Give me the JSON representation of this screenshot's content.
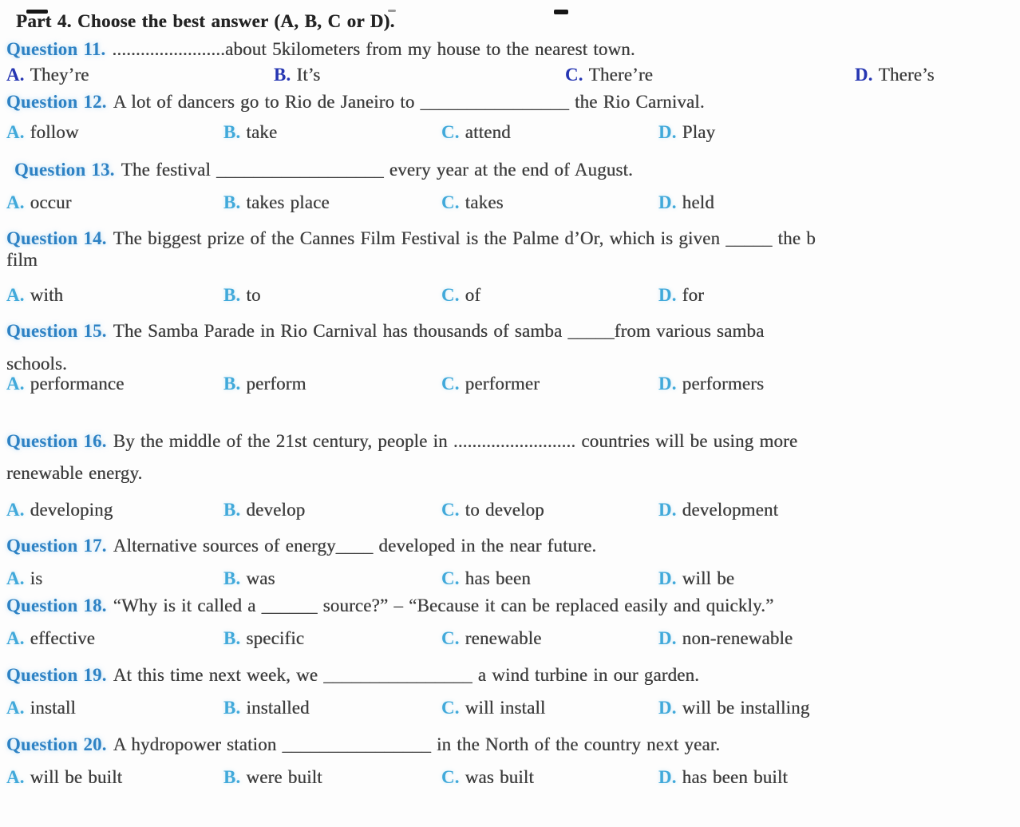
{
  "palette": {
    "page_bg": "#fdfdfd",
    "body_text": "#3e3e3e",
    "heading_text": "#232323",
    "question_label": "#2e82c4",
    "q11_letter": "#2636b2",
    "option_letter": "#41a9da"
  },
  "heading": "Part 4. Choose the best answer (A, B, C or D).",
  "questions": [
    {
      "id": "q11",
      "label": "Question 11.",
      "text": "........................about 5kilometers from my house to the nearest town.",
      "options": [
        {
          "letter": "A.",
          "text": "They’re"
        },
        {
          "letter": "B.",
          "text": "It’s"
        },
        {
          "letter": "C.",
          "text": "There’re"
        },
        {
          "letter": "D.",
          "text": "There’s"
        }
      ]
    },
    {
      "id": "q12",
      "label": "Question 12.",
      "text": "A lot of dancers go to Rio de Janeiro to ________________ the Rio Carnival.",
      "options": [
        {
          "letter": "A.",
          "text": "follow"
        },
        {
          "letter": "B.",
          "text": "take"
        },
        {
          "letter": "C.",
          "text": "attend"
        },
        {
          "letter": "D.",
          "text": "Play"
        }
      ]
    },
    {
      "id": "q13",
      "label": "Question 13.",
      "text": "The festival __________________ every year at the end of August.",
      "options": [
        {
          "letter": "A.",
          "text": "occur"
        },
        {
          "letter": "B.",
          "text": "takes place"
        },
        {
          "letter": "C.",
          "text": "takes"
        },
        {
          "letter": "D.",
          "text": "held"
        }
      ]
    },
    {
      "id": "q14",
      "label": "Question 14.",
      "text": "The biggest prize of the Cannes Film Festival is the Palme d’Or, which is given _____ the b",
      "text2": "film",
      "options": [
        {
          "letter": "A.",
          "text": "with"
        },
        {
          "letter": "B.",
          "text": "to"
        },
        {
          "letter": "C.",
          "text": "of"
        },
        {
          "letter": "D.",
          "text": "for"
        }
      ]
    },
    {
      "id": "q15",
      "label": "Question 15.",
      "text": "The Samba Parade in Rio Carnival has thousands of samba _____from various samba",
      "text2": "schools.",
      "options": [
        {
          "letter": "A.",
          "text": "performance"
        },
        {
          "letter": "B.",
          "text": "perform"
        },
        {
          "letter": "C.",
          "text": "performer"
        },
        {
          "letter": "D.",
          "text": "performers"
        }
      ]
    },
    {
      "id": "q16",
      "label": "Question 16.",
      "text": "By the middle of the 21st century, people in .......................... countries will be using more",
      "text2": "renewable energy.",
      "options": [
        {
          "letter": "A.",
          "text": "developing"
        },
        {
          "letter": "B.",
          "text": "develop"
        },
        {
          "letter": "C.",
          "text": "to develop"
        },
        {
          "letter": "D.",
          "text": "development"
        }
      ]
    },
    {
      "id": "q17",
      "label": "Question 17.",
      "text": "Alternative sources of energy____ developed in the near future.",
      "options": [
        {
          "letter": "A.",
          "text": "is"
        },
        {
          "letter": "B.",
          "text": "was"
        },
        {
          "letter": "C.",
          "text": "has been"
        },
        {
          "letter": "D.",
          "text": "will be"
        }
      ]
    },
    {
      "id": "q18",
      "label": "Question 18.",
      "text": "“Why is it called a ______ source?” – “Because it can be replaced easily and quickly.”",
      "options": [
        {
          "letter": "A.",
          "text": "effective"
        },
        {
          "letter": "B.",
          "text": "specific"
        },
        {
          "letter": "C.",
          "text": "renewable"
        },
        {
          "letter": "D.",
          "text": "non-renewable"
        }
      ]
    },
    {
      "id": "q19",
      "label": "Question 19.",
      "text": "At this time next week, we ________________ a wind turbine in our garden.",
      "options": [
        {
          "letter": "A.",
          "text": "install"
        },
        {
          "letter": "B.",
          "text": "installed"
        },
        {
          "letter": "C.",
          "text": "will install"
        },
        {
          "letter": "D.",
          "text": "will be installing"
        }
      ]
    },
    {
      "id": "q20",
      "label": "Question 20.",
      "text": "A hydropower station ________________ in the North of the country next year.",
      "options": [
        {
          "letter": "A.",
          "text": "will be built"
        },
        {
          "letter": "B.",
          "text": "were built"
        },
        {
          "letter": "C.",
          "text": "was built"
        },
        {
          "letter": "D.",
          "text": "has been built"
        }
      ]
    }
  ]
}
